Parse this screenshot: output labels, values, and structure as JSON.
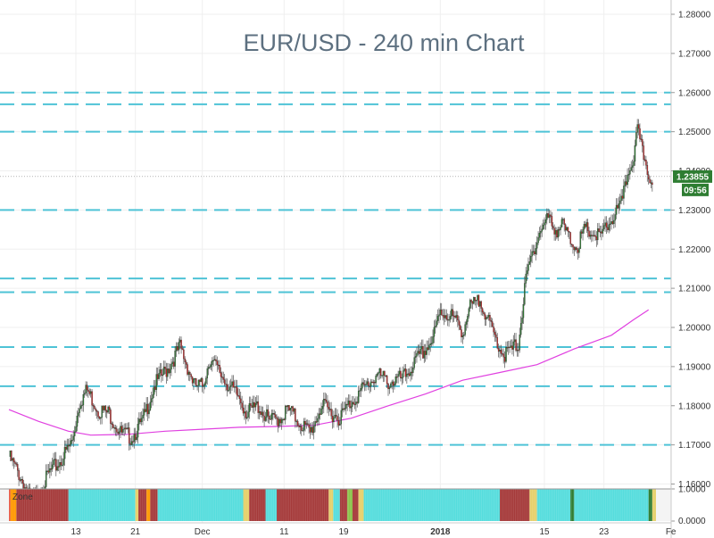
{
  "chart_data": {
    "type": "candlestick",
    "title": "EUR/USD - 240 min Chart",
    "symbol": "EUR/USD",
    "timeframe": "240 min",
    "ylim": [
      1.1525,
      1.2825
    ],
    "y_ticks": [
      "1.28000",
      "1.27000",
      "1.26000",
      "1.25000",
      "1.24000",
      "1.23000",
      "1.22000",
      "1.21000",
      "1.20000",
      "1.19000",
      "1.18000",
      "1.17000",
      "1.16000"
    ],
    "x_ticks": [
      {
        "label": "13",
        "day": 13
      },
      {
        "label": "21",
        "day": 21
      },
      {
        "label": "Dec",
        "day": 30
      },
      {
        "label": "11",
        "day": 41
      },
      {
        "label": "19",
        "day": 49
      },
      {
        "label": "2018",
        "day": 62,
        "bold": true
      },
      {
        "label": "15",
        "day": 76
      },
      {
        "label": "23",
        "day": 84
      },
      {
        "label": "Fe",
        "day": 93
      }
    ],
    "x_range_days": [
      4,
      91
    ],
    "horizontal_levels": [
      1.26,
      1.257,
      1.25,
      1.23,
      1.2125,
      1.209,
      1.195,
      1.185,
      1.17,
      1.1585
    ],
    "close_price": {
      "value": 1.23855,
      "label": "1.23855",
      "timer": "09:56"
    },
    "price_anchors": [
      [
        4,
        1.167
      ],
      [
        5.5,
        1.162
      ],
      [
        7,
        1.1555
      ],
      [
        8,
        1.1575
      ],
      [
        9.5,
        1.163
      ],
      [
        11,
        1.166
      ],
      [
        12.5,
        1.171
      ],
      [
        13.5,
        1.181
      ],
      [
        14.5,
        1.184
      ],
      [
        16,
        1.179
      ],
      [
        17.5,
        1.178
      ],
      [
        19,
        1.173
      ],
      [
        20.5,
        1.172
      ],
      [
        22,
        1.176
      ],
      [
        23.5,
        1.185
      ],
      [
        25.5,
        1.19
      ],
      [
        27,
        1.195
      ],
      [
        28,
        1.19
      ],
      [
        29,
        1.185
      ],
      [
        30,
        1.185
      ],
      [
        31,
        1.192
      ],
      [
        32.5,
        1.188
      ],
      [
        34,
        1.184
      ],
      [
        35,
        1.182
      ],
      [
        36,
        1.178
      ],
      [
        37.5,
        1.18
      ],
      [
        39,
        1.176
      ],
      [
        40.5,
        1.177
      ],
      [
        41.5,
        1.179
      ],
      [
        43,
        1.176
      ],
      [
        44.5,
        1.173
      ],
      [
        46,
        1.18
      ],
      [
        47.5,
        1.178
      ],
      [
        48.5,
        1.177
      ],
      [
        50,
        1.181
      ],
      [
        52,
        1.185
      ],
      [
        53.5,
        1.188
      ],
      [
        55,
        1.186
      ],
      [
        57,
        1.187
      ],
      [
        59,
        1.192
      ],
      [
        61,
        1.197
      ],
      [
        62,
        1.204
      ],
      [
        63.5,
        1.203
      ],
      [
        65,
        1.199
      ],
      [
        66,
        1.205
      ],
      [
        67.5,
        1.207
      ],
      [
        68.5,
        1.201
      ],
      [
        69.5,
        1.197
      ],
      [
        70.5,
        1.193
      ],
      [
        71.5,
        1.194
      ],
      [
        72.5,
        1.196
      ],
      [
        73.5,
        1.212
      ],
      [
        74.5,
        1.22
      ],
      [
        75.5,
        1.225
      ],
      [
        76.5,
        1.228
      ],
      [
        77.5,
        1.225
      ],
      [
        78.5,
        1.226
      ],
      [
        79.5,
        1.222
      ],
      [
        80.5,
        1.221
      ],
      [
        81.5,
        1.225
      ],
      [
        82.5,
        1.224
      ],
      [
        83.5,
        1.223
      ],
      [
        84.5,
        1.226
      ],
      [
        85.5,
        1.229
      ],
      [
        86.5,
        1.232
      ],
      [
        87,
        1.238
      ],
      [
        88,
        1.244
      ],
      [
        88.5,
        1.25
      ],
      [
        89,
        1.246
      ],
      [
        89.5,
        1.243
      ],
      [
        90,
        1.239
      ],
      [
        90.5,
        1.2385
      ]
    ],
    "moving_average": [
      [
        4,
        1.179
      ],
      [
        8,
        1.176
      ],
      [
        12,
        1.1735
      ],
      [
        15,
        1.1725
      ],
      [
        20,
        1.1727
      ],
      [
        25,
        1.1735
      ],
      [
        30,
        1.174
      ],
      [
        35,
        1.1745
      ],
      [
        40,
        1.1747
      ],
      [
        45,
        1.175
      ],
      [
        50,
        1.1768
      ],
      [
        55,
        1.18
      ],
      [
        60,
        1.183
      ],
      [
        65,
        1.1865
      ],
      [
        70,
        1.1885
      ],
      [
        75,
        1.1905
      ],
      [
        80,
        1.1945
      ],
      [
        85,
        1.198
      ],
      [
        88,
        1.202
      ],
      [
        90,
        1.2045
      ]
    ],
    "zone_indicator": {
      "label": "Zone",
      "scale_top": "1.0000",
      "scale_bottom": "0.0000",
      "segments": [
        {
          "from": 4.0,
          "to": 4.2,
          "color": "#e74c3c"
        },
        {
          "from": 4.2,
          "to": 5.0,
          "color": "#ff9800"
        },
        {
          "from": 5.0,
          "to": 12.0,
          "color": "#a53a3a"
        },
        {
          "from": 12.0,
          "to": 21.0,
          "color": "#55dddd"
        },
        {
          "from": 21.0,
          "to": 21.4,
          "color": "#e6d06a"
        },
        {
          "from": 21.4,
          "to": 22.5,
          "color": "#a53a3a"
        },
        {
          "from": 22.5,
          "to": 23.0,
          "color": "#ff9800"
        },
        {
          "from": 23.0,
          "to": 24.0,
          "color": "#a53a3a"
        },
        {
          "from": 24.0,
          "to": 35.5,
          "color": "#55dddd"
        },
        {
          "from": 35.5,
          "to": 36.3,
          "color": "#e6d06a"
        },
        {
          "from": 36.3,
          "to": 38.5,
          "color": "#a53a3a"
        },
        {
          "from": 38.5,
          "to": 40.0,
          "color": "#55dddd"
        },
        {
          "from": 40.0,
          "to": 47.0,
          "color": "#a53a3a"
        },
        {
          "from": 47.0,
          "to": 47.6,
          "color": "#e6d06a"
        },
        {
          "from": 47.6,
          "to": 48.5,
          "color": "#55dddd"
        },
        {
          "from": 48.5,
          "to": 49.5,
          "color": "#a53a3a"
        },
        {
          "from": 49.5,
          "to": 50.2,
          "color": "#8bc34a"
        },
        {
          "from": 50.2,
          "to": 51.0,
          "color": "#a53a3a"
        },
        {
          "from": 51.0,
          "to": 51.7,
          "color": "#e6d06a"
        },
        {
          "from": 51.7,
          "to": 70.0,
          "color": "#55dddd"
        },
        {
          "from": 70.0,
          "to": 74.0,
          "color": "#a53a3a"
        },
        {
          "from": 74.0,
          "to": 75.0,
          "color": "#e6d06a"
        },
        {
          "from": 75.0,
          "to": 79.5,
          "color": "#55dddd"
        },
        {
          "from": 79.5,
          "to": 80.0,
          "color": "#2e7d32"
        },
        {
          "from": 80.0,
          "to": 90.0,
          "color": "#55dddd"
        },
        {
          "from": 90.0,
          "to": 90.5,
          "color": "#2e7d32"
        },
        {
          "from": 90.5,
          "to": 91.0,
          "color": "#e6d06a"
        }
      ]
    },
    "colors": {
      "up": "#2e7d32",
      "down": "#c62828",
      "level_line": "#4ec3d6",
      "moving_average": "#e040e0",
      "close_tag": "#2e7d32",
      "title": "#5d7080",
      "grid": "#efefef"
    }
  }
}
